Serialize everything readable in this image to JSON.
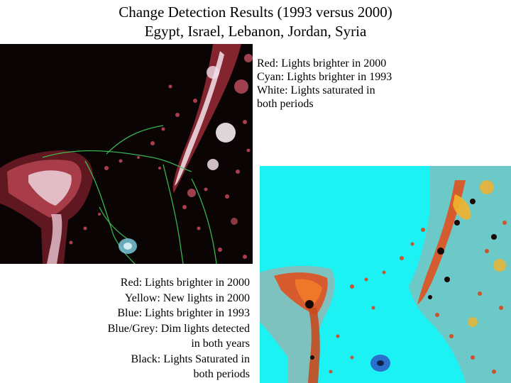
{
  "title": {
    "line1": "Change Detection Results (1993 versus 2000)",
    "line2": "Egypt, Israel, Lebanon, Jordan, Syria"
  },
  "legend_composite": [
    "Red: Lights brighter in 2000",
    "Cyan: Lights brighter in 1993",
    "White: Lights saturated in",
    "both periods"
  ],
  "legend_classified": [
    "Red: Lights brighter in 2000",
    "Yellow: New lights in 2000",
    "Blue: Lights brighter in 1993",
    "Blue/Grey: Dim lights detected",
    "in both years",
    "Black: Lights Saturated in",
    "both periods"
  ],
  "colors": {
    "composite_background": "#0a0405",
    "composite_red": "#c0303c",
    "composite_white": "#f4e8ee",
    "composite_cyan": "#7cc8dc",
    "composite_roads": "#3ec85a",
    "classified_background": "#1cf2f4",
    "classified_red": "#e0501e",
    "classified_yellow": "#f2b22a",
    "classified_blue": "#2a62c8",
    "classified_grey": "#8fb8b4",
    "classified_black": "#1a0a08"
  }
}
